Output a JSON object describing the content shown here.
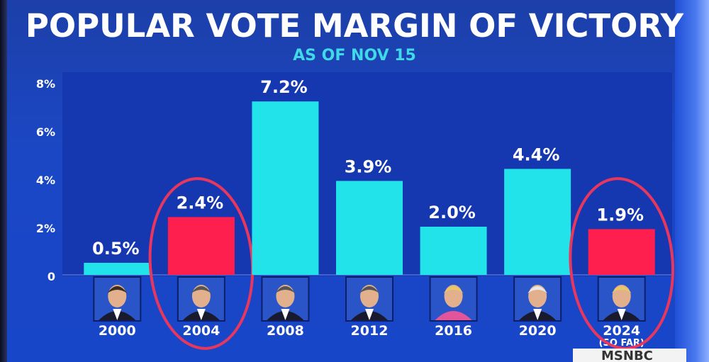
{
  "header": {
    "title": "POPULAR VOTE MARGIN OF VICTORY",
    "subtitle": "AS OF NOV 15"
  },
  "chart_data": {
    "type": "bar",
    "title": "POPULAR VOTE MARGIN OF VICTORY",
    "subtitle": "AS OF NOV 15",
    "categories": [
      "2000",
      "2004",
      "2008",
      "2012",
      "2016",
      "2020",
      "2024"
    ],
    "category_sublabels": [
      "",
      "",
      "",
      "",
      "",
      "",
      "(SO FAR)"
    ],
    "values": [
      0.5,
      2.4,
      7.2,
      3.9,
      2.0,
      4.4,
      1.9
    ],
    "value_labels": [
      "0.5%",
      "2.4%",
      "7.2%",
      "3.9%",
      "2.0%",
      "4.4%",
      "1.9%"
    ],
    "party": [
      "D",
      "R",
      "D",
      "D",
      "D",
      "D",
      "R"
    ],
    "colors": {
      "D": "#22e3ea",
      "R": "#ff1f4e",
      "background": "#1b45c4"
    },
    "circled": [
      "2004",
      "2024"
    ],
    "circle_color": "#e8375e",
    "ylim": [
      0,
      8
    ],
    "yticks": [
      0,
      2,
      4,
      6,
      8
    ],
    "ytick_labels": [
      "0",
      "2%",
      "4%",
      "6%",
      "8%"
    ],
    "xlabel": "",
    "ylabel": "",
    "grid": false,
    "legend": "none"
  },
  "branding": {
    "network": "MSNBC"
  }
}
